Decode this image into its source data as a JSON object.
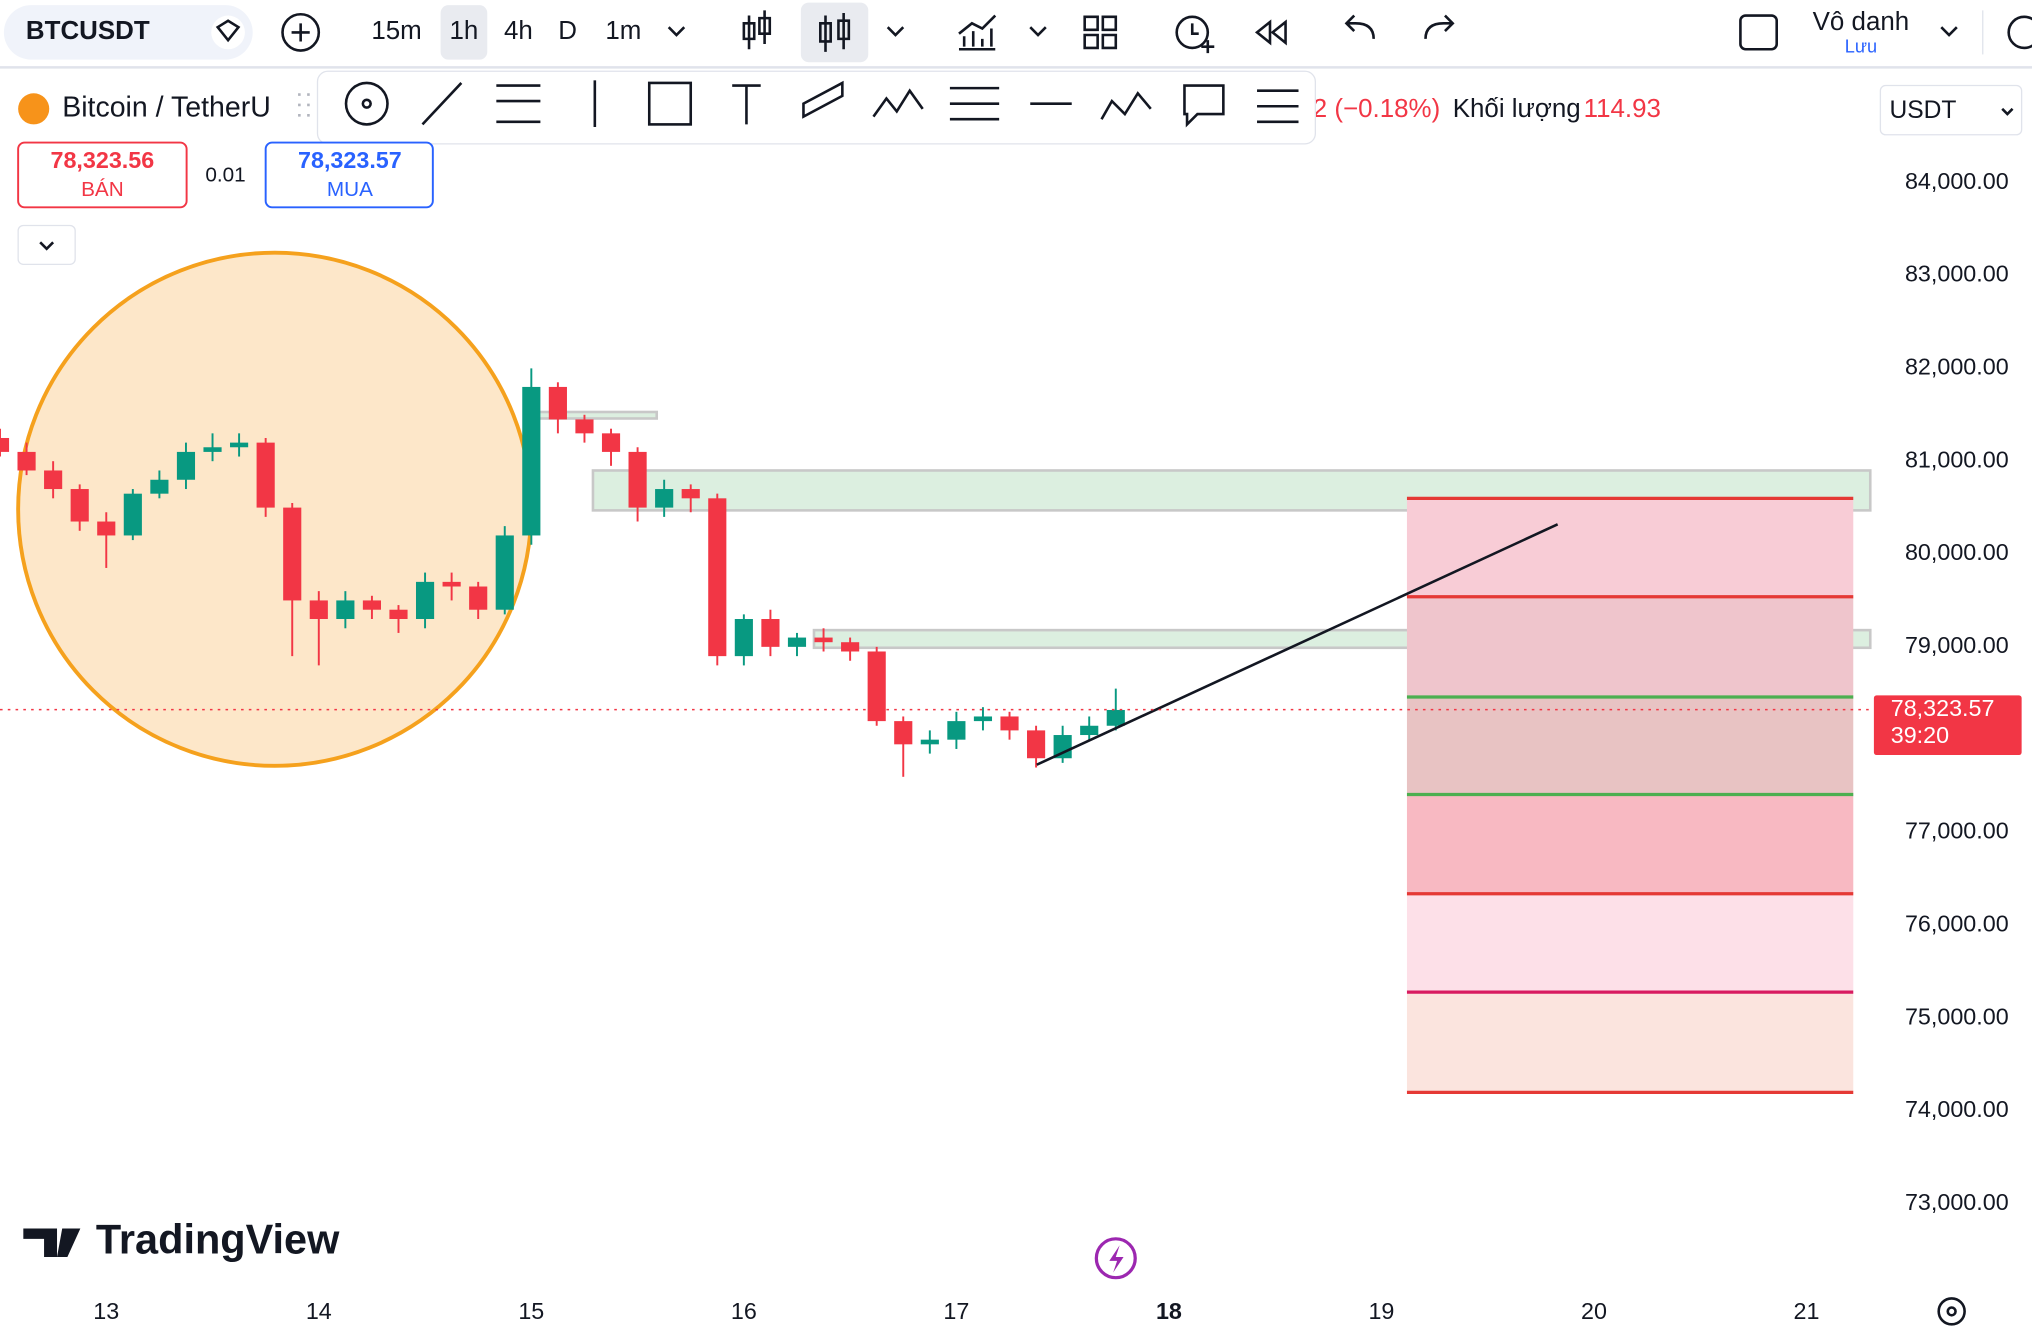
{
  "header": {
    "symbol": "BTCUSDT",
    "intervals": [
      "15m",
      "1h",
      "4h",
      "D",
      "1m"
    ],
    "account": "Vô danh",
    "save": "Lưu"
  },
  "legend": {
    "name": "Bitcoin / TetherU",
    "change": "2 (−0.18%)",
    "volume_label": "Khối lượng",
    "volume": "114.93",
    "currency": "USDT"
  },
  "trade": {
    "sell_price": "78,323.56",
    "sell": "BÁN",
    "qty": "0.01",
    "buy_price": "78,323.57",
    "buy": "MUA"
  },
  "logo": "TradingView",
  "chart_data": {
    "type": "candlestick",
    "x": [
      12.5,
      12.625,
      12.75,
      12.875,
      13,
      13.125,
      13.25,
      13.375,
      13.5,
      13.625,
      13.75,
      13.875,
      14,
      14.125,
      14.25,
      14.375,
      14.5,
      14.625,
      14.75,
      14.875,
      15,
      15.125,
      15.25,
      15.375,
      15.5,
      15.625,
      15.75,
      15.875,
      16,
      16.125,
      16.25,
      16.375,
      16.5,
      16.625,
      16.75,
      16.875,
      17,
      17.125,
      17.25,
      17.375,
      17.5,
      17.625,
      17.75
    ],
    "open": [
      81250,
      81100,
      80900,
      80700,
      80350,
      80200,
      80650,
      80800,
      81100,
      81150,
      81200,
      80500,
      79500,
      79300,
      79500,
      79400,
      79300,
      79700,
      79650,
      79400,
      80200,
      81800,
      81450,
      81300,
      81100,
      80500,
      80700,
      80600,
      78900,
      79300,
      79000,
      79100,
      79050,
      78950,
      78200,
      77950,
      78000,
      78200,
      78250,
      78100,
      77800,
      78050,
      78150
    ],
    "high": [
      81350,
      81200,
      81000,
      80750,
      80450,
      80700,
      80900,
      81200,
      81300,
      81300,
      81250,
      80550,
      79600,
      79600,
      79550,
      79450,
      79800,
      79800,
      79700,
      80300,
      82000,
      81850,
      81500,
      81350,
      81150,
      80800,
      80750,
      80650,
      79350,
      79400,
      79150,
      79200,
      79100,
      79000,
      78250,
      78100,
      78300,
      78350,
      78300,
      78150,
      78150,
      78250,
      78550
    ],
    "low": [
      81050,
      80850,
      80600,
      80250,
      79850,
      80150,
      80600,
      80700,
      81000,
      81050,
      80400,
      78900,
      78800,
      79200,
      79300,
      79150,
      79200,
      79500,
      79300,
      79350,
      80100,
      81300,
      81200,
      80950,
      80350,
      80400,
      80450,
      78800,
      78800,
      78900,
      78900,
      78950,
      78850,
      78150,
      77600,
      77850,
      77900,
      78100,
      78000,
      77700,
      77750,
      78000,
      78100
    ],
    "close": [
      81100,
      80900,
      80700,
      80350,
      80200,
      80650,
      80800,
      81100,
      81150,
      81200,
      80500,
      79500,
      79300,
      79500,
      79400,
      79300,
      79700,
      79650,
      79400,
      80200,
      81800,
      81450,
      81300,
      81100,
      80500,
      80700,
      80600,
      78900,
      79300,
      79000,
      79100,
      79050,
      78950,
      78200,
      77950,
      78000,
      78200,
      78250,
      78100,
      77800,
      78050,
      78150,
      78320
    ],
    "up_color": "#089981",
    "down_color": "#f23645",
    "xlim": [
      12.5,
      21.3
    ],
    "xticks": [
      13,
      14,
      15,
      16,
      17,
      18,
      19,
      20,
      21
    ],
    "x_highlight": 18,
    "ylim": [
      72000,
      85000
    ],
    "yticks": [
      {
        "value": 73000,
        "label": "73,000.00"
      },
      {
        "value": 74000,
        "label": "74,000.00"
      },
      {
        "value": 75000,
        "label": "75,000.00"
      },
      {
        "value": 76000,
        "label": "76,000.00"
      },
      {
        "value": 77000,
        "label": "77,000.00"
      },
      {
        "value": 78000,
        "label": "78,000.00"
      },
      {
        "value": 79000,
        "label": "79,000.00"
      },
      {
        "value": 80000,
        "label": "80,000.00"
      },
      {
        "value": 81000,
        "label": "81,000.00"
      },
      {
        "value": 82000,
        "label": "82,000.00"
      },
      {
        "value": 83000,
        "label": "83,000.00"
      },
      {
        "value": 84000,
        "label": "84,000.00"
      }
    ],
    "hidden_ytick": 78000,
    "zones": [
      {
        "from": 80470,
        "to": 80900,
        "x": [
          15.29,
          21.3
        ]
      },
      {
        "from": 78990,
        "to": 79180,
        "x": [
          16.33,
          21.3
        ]
      },
      {
        "from": 81460,
        "to": 81530,
        "x": [
          14.97,
          15.59
        ]
      }
    ],
    "zone_color": "#dcefe0",
    "levels": [
      80600,
      79540,
      78460,
      77410,
      76340,
      75280,
      74200
    ],
    "level_colors": [
      "#e53935",
      "#e53935",
      "#4caf50",
      "#4caf50",
      "#e53935",
      "#d81b60",
      "#e53935"
    ],
    "band_colors": [
      "#f8ccd6",
      "#efc5cc",
      "#e8c3c3",
      "#f8b9c2",
      "#fde0e8",
      "#fbe4de"
    ],
    "level_x": [
      19.12,
      21.22
    ],
    "trendline": {
      "x": [
        17.378,
        19.829
      ],
      "y": [
        77730,
        80320
      ]
    },
    "last_price": {
      "value": 78323.57,
      "label": "78,323.57"
    },
    "countdown": "39:20"
  }
}
